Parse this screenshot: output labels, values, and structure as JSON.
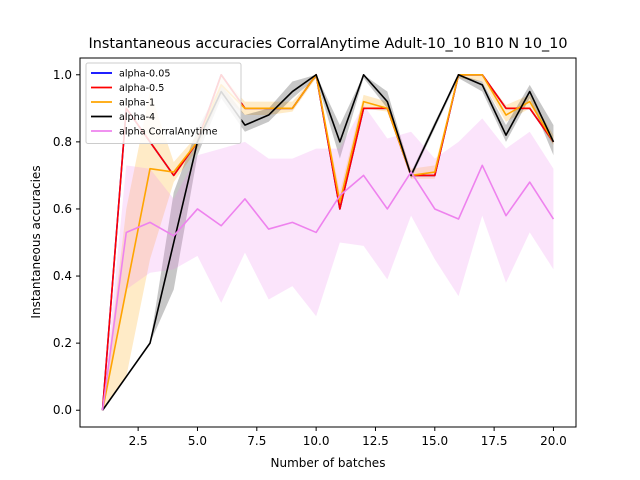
{
  "chart_data": {
    "type": "line",
    "title": "Instantaneous accuracies CorralAnytime Adult-10_10 B10 N 10_10",
    "xlabel": "Number of batches",
    "ylabel": "Instantaneous accuracies",
    "xlim": [
      0.05,
      20.95
    ],
    "ylim": [
      -0.05,
      1.05
    ],
    "xticks": [
      2.5,
      5.0,
      7.5,
      10.0,
      12.5,
      15.0,
      17.5,
      20.0
    ],
    "xtick_labels": [
      "2.5",
      "5.0",
      "7.5",
      "10.0",
      "12.5",
      "15.0",
      "17.5",
      "20.0"
    ],
    "yticks": [
      0.0,
      0.2,
      0.4,
      0.6,
      0.8,
      1.0
    ],
    "ytick_labels": [
      "0.0",
      "0.2",
      "0.4",
      "0.6",
      "0.8",
      "1.0"
    ],
    "grid": false,
    "legend_position": "top-left",
    "x": [
      1,
      2,
      3,
      4,
      5,
      6,
      7,
      8,
      9,
      10,
      11,
      12,
      13,
      14,
      15,
      16,
      17,
      18,
      19,
      20
    ],
    "series": [
      {
        "name": "alpha-0.05",
        "color": "#0000ff",
        "values": [
          0.0,
          0.9,
          0.8,
          0.7,
          0.8,
          1.0,
          0.9,
          0.9,
          0.9,
          1.0,
          0.6,
          0.9,
          0.9,
          0.7,
          0.7,
          1.0,
          1.0,
          0.9,
          0.9,
          0.8
        ]
      },
      {
        "name": "alpha-0.5",
        "color": "#ff0000",
        "values": [
          0.0,
          0.9,
          0.8,
          0.7,
          0.8,
          1.0,
          0.9,
          0.9,
          0.9,
          1.0,
          0.6,
          0.9,
          0.9,
          0.7,
          0.7,
          1.0,
          1.0,
          0.9,
          0.9,
          0.8
        ]
      },
      {
        "name": "alpha-1",
        "color": "#ffa500",
        "values": [
          0.0,
          0.36,
          0.72,
          0.71,
          0.8,
          0.97,
          0.9,
          0.9,
          0.9,
          1.0,
          0.62,
          0.92,
          0.9,
          0.7,
          0.71,
          1.0,
          1.0,
          0.88,
          0.92,
          0.8
        ],
        "band_lower": [
          0.0,
          0.1,
          0.45,
          0.68,
          0.78,
          0.94,
          0.88,
          0.88,
          0.89,
          0.99,
          0.6,
          0.9,
          0.89,
          0.69,
          0.69,
          0.99,
          0.98,
          0.86,
          0.9,
          0.79
        ],
        "band_upper": [
          0.0,
          0.6,
          0.95,
          0.74,
          0.82,
          1.0,
          0.92,
          0.92,
          0.92,
          1.0,
          0.65,
          0.94,
          0.92,
          0.72,
          0.73,
          1.0,
          1.0,
          0.91,
          0.94,
          0.82
        ]
      },
      {
        "name": "alpha-4",
        "color": "#000000",
        "values": [
          0.0,
          0.1,
          0.2,
          0.5,
          0.8,
          0.95,
          0.85,
          0.88,
          0.95,
          1.0,
          0.8,
          1.0,
          0.92,
          0.7,
          0.85,
          1.0,
          0.97,
          0.82,
          0.95,
          0.8
        ],
        "band_lower": [
          0.0,
          0.1,
          0.2,
          0.36,
          0.76,
          0.93,
          0.83,
          0.86,
          0.93,
          0.99,
          0.75,
          0.99,
          0.9,
          0.69,
          0.84,
          0.99,
          0.95,
          0.8,
          0.93,
          0.76
        ],
        "band_upper": [
          0.0,
          0.1,
          0.2,
          0.65,
          0.84,
          0.97,
          0.88,
          0.9,
          0.98,
          1.0,
          0.85,
          1.0,
          0.95,
          0.71,
          0.86,
          1.0,
          0.98,
          0.85,
          0.97,
          0.85
        ]
      },
      {
        "name": "alpha CorralAnytime",
        "color": "#ee82ee",
        "values": [
          0.0,
          0.53,
          0.56,
          0.52,
          0.6,
          0.55,
          0.63,
          0.54,
          0.56,
          0.53,
          0.64,
          0.7,
          0.6,
          0.71,
          0.6,
          0.57,
          0.73,
          0.58,
          0.68,
          0.57
        ],
        "band_lower": [
          0.0,
          0.36,
          0.41,
          0.42,
          0.46,
          0.32,
          0.47,
          0.33,
          0.37,
          0.28,
          0.5,
          0.49,
          0.39,
          0.58,
          0.45,
          0.34,
          0.58,
          0.38,
          0.53,
          0.42
        ],
        "band_upper": [
          0.0,
          0.73,
          0.72,
          0.63,
          0.76,
          0.78,
          0.8,
          0.75,
          0.75,
          0.78,
          0.78,
          0.91,
          0.81,
          0.83,
          0.75,
          0.8,
          0.87,
          0.78,
          0.83,
          0.72
        ]
      }
    ]
  }
}
